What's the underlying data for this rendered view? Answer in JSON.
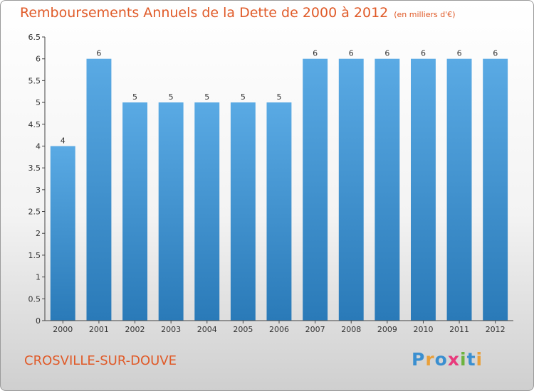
{
  "header": {
    "title": "Remboursements Annuels de la Dette de 2000 à 2012",
    "unit": "(en milliers d'€)"
  },
  "footer": {
    "place": "CROSVILLE-SUR-DOUVE",
    "logo": [
      "P",
      "r",
      "o",
      "x",
      "i",
      "t",
      "i"
    ],
    "logo_colors": [
      "#3a8fd0",
      "#e9a03a",
      "#3a8fd0",
      "#e83a7c",
      "#6db33f",
      "#3a8fd0",
      "#e9a03a"
    ]
  },
  "colors": {
    "bar_light": "#5aaae4",
    "bar_dark": "#2a7ab8",
    "text": "#333333",
    "accent": "#e05a28"
  },
  "chart_data": {
    "type": "bar",
    "title": "Remboursements Annuels de la Dette de 2000 à 2012",
    "categories": [
      "2000",
      "2001",
      "2002",
      "2003",
      "2004",
      "2005",
      "2006",
      "2007",
      "2008",
      "2009",
      "2010",
      "2011",
      "2012"
    ],
    "values": [
      4,
      6,
      5,
      5,
      5,
      5,
      5,
      6,
      6,
      6,
      6,
      6,
      6
    ],
    "value_labels": [
      "4",
      "6",
      "5",
      "5",
      "5",
      "5",
      "5",
      "6",
      "6",
      "6",
      "6",
      "6",
      "6"
    ],
    "ylim": [
      0,
      6.5
    ],
    "yticks": [
      0,
      0.5,
      1,
      1.5,
      2,
      2.5,
      3,
      3.5,
      4,
      4.5,
      5,
      5.5,
      6,
      6.5
    ],
    "ytick_labels": [
      "0",
      "0.5",
      "1",
      "1.5",
      "2",
      "2.5",
      "3",
      "3.5",
      "4",
      "4.5",
      "5",
      "5.5",
      "6",
      "6.5"
    ],
    "grid": false
  }
}
